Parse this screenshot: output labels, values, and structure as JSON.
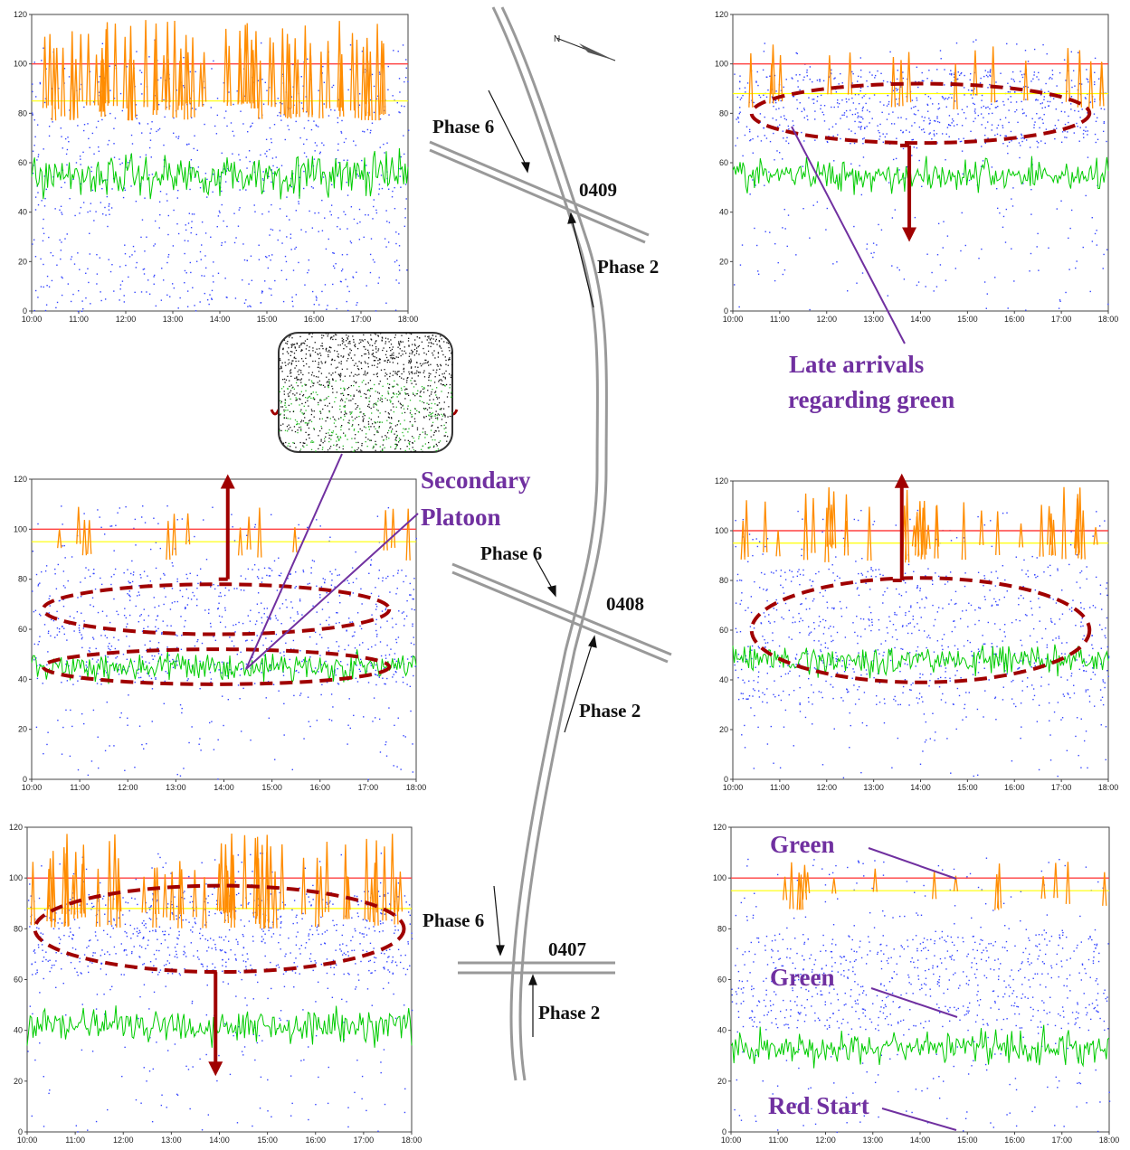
{
  "chart_data": [
    {
      "id": "0409-phase6",
      "type": "scatter",
      "x_ticks": [
        "10:00",
        "11:00",
        "12:00",
        "13:00",
        "14:00",
        "15:00",
        "16:00",
        "17:00",
        "18:00"
      ],
      "y_ticks": [
        0,
        20,
        40,
        60,
        80,
        100,
        120
      ],
      "ylim": [
        0,
        120
      ],
      "series": [
        {
          "kind": "red_line",
          "level": 100,
          "color": "#ff4040"
        },
        {
          "kind": "yellow_line",
          "level": 85,
          "color": "#ffff00"
        },
        {
          "kind": "orange_spikes",
          "base": 100,
          "peak": 118,
          "count": 70,
          "color": "#ff8c00"
        },
        {
          "kind": "green_band",
          "center": 55,
          "spread": 9,
          "color": "#00cc00"
        },
        {
          "kind": "blue_points",
          "dense_min": 0,
          "dense_max": 100,
          "color": "#3344ff"
        }
      ],
      "ellipses": [],
      "arrows": []
    },
    {
      "id": "0409-phase2",
      "type": "scatter",
      "x_ticks": [
        "10:00",
        "11:00",
        "12:00",
        "13:00",
        "14:00",
        "15:00",
        "16:00",
        "17:00",
        "18:00"
      ],
      "y_ticks": [
        0,
        20,
        40,
        60,
        80,
        100,
        120
      ],
      "ylim": [
        0,
        120
      ],
      "series": [
        {
          "kind": "red_line",
          "level": 100,
          "color": "#ff4040"
        },
        {
          "kind": "yellow_line",
          "level": 88,
          "color": "#ffff00"
        },
        {
          "kind": "orange_spikes",
          "base": 100,
          "peak": 108,
          "count": 18,
          "color": "#ff8c00"
        },
        {
          "kind": "green_band",
          "center": 55,
          "spread": 7,
          "color": "#00cc00"
        },
        {
          "kind": "blue_points",
          "dense_min": 68,
          "dense_max": 98,
          "color": "#3344ff"
        }
      ],
      "ellipses": [
        {
          "cx_frac": 0.5,
          "cy": 80,
          "rx_frac": 0.45,
          "ry": 12
        }
      ],
      "arrows": [
        {
          "direction": "down",
          "x_frac": 0.47,
          "from": 67,
          "to": 28
        }
      ]
    },
    {
      "id": "0408-phase6",
      "type": "scatter",
      "x_ticks": [
        "10:00",
        "11:00",
        "12:00",
        "13:00",
        "14:00",
        "15:00",
        "16:00",
        "17:00",
        "18:00"
      ],
      "y_ticks": [
        0,
        20,
        40,
        60,
        80,
        100,
        120
      ],
      "ylim": [
        0,
        120
      ],
      "series": [
        {
          "kind": "red_line",
          "level": 100,
          "color": "#ff4040"
        },
        {
          "kind": "yellow_line",
          "level": 95,
          "color": "#ffff00"
        },
        {
          "kind": "orange_spikes",
          "base": 100,
          "peak": 110,
          "count": 14,
          "color": "#ff8c00"
        },
        {
          "kind": "green_band",
          "center": 45,
          "spread": 6,
          "color": "#00cc00"
        },
        {
          "kind": "blue_points",
          "dense_min": 38,
          "dense_max": 85,
          "color": "#3344ff"
        }
      ],
      "ellipses": [
        {
          "cx_frac": 0.48,
          "cy": 68,
          "rx_frac": 0.45,
          "ry": 10
        },
        {
          "cx_frac": 0.48,
          "cy": 45,
          "rx_frac": 0.45,
          "ry": 7
        }
      ],
      "arrows": [
        {
          "direction": "up",
          "x_frac": 0.51,
          "from": 80,
          "to": 122
        }
      ]
    },
    {
      "id": "0408-phase2",
      "type": "scatter",
      "x_ticks": [
        "10:00",
        "11:00",
        "12:00",
        "13:00",
        "14:00",
        "15:00",
        "16:00",
        "17:00",
        "18:00"
      ],
      "y_ticks": [
        0,
        20,
        40,
        60,
        80,
        100,
        120
      ],
      "ylim": [
        0,
        120
      ],
      "series": [
        {
          "kind": "red_line",
          "level": 100,
          "color": "#ff4040"
        },
        {
          "kind": "yellow_line",
          "level": 95,
          "color": "#ffff00"
        },
        {
          "kind": "orange_spikes",
          "base": 100,
          "peak": 118,
          "count": 40,
          "color": "#ff8c00"
        },
        {
          "kind": "green_band",
          "center": 48,
          "spread": 6,
          "color": "#00cc00"
        },
        {
          "kind": "blue_points",
          "dense_min": 30,
          "dense_max": 85,
          "color": "#3344ff"
        }
      ],
      "ellipses": [
        {
          "cx_frac": 0.5,
          "cy": 60,
          "rx_frac": 0.45,
          "ry": 21
        }
      ],
      "arrows": [
        {
          "direction": "up",
          "x_frac": 0.45,
          "from": 80,
          "to": 123
        }
      ]
    },
    {
      "id": "0407-phase6",
      "type": "scatter",
      "x_ticks": [
        "10:00",
        "11:00",
        "12:00",
        "13:00",
        "14:00",
        "15:00",
        "16:00",
        "17:00",
        "18:00"
      ],
      "y_ticks": [
        0,
        20,
        40,
        60,
        80,
        100,
        120
      ],
      "ylim": [
        0,
        120
      ],
      "series": [
        {
          "kind": "red_line",
          "level": 100,
          "color": "#ff4040"
        },
        {
          "kind": "yellow_line",
          "level": 88,
          "color": "#ffff00"
        },
        {
          "kind": "orange_spikes",
          "base": 100,
          "peak": 118,
          "count": 60,
          "color": "#ff8c00"
        },
        {
          "kind": "green_band",
          "center": 42,
          "spread": 8,
          "color": "#00cc00"
        },
        {
          "kind": "blue_points",
          "dense_min": 62,
          "dense_max": 95,
          "color": "#3344ff"
        }
      ],
      "ellipses": [
        {
          "cx_frac": 0.5,
          "cy": 80,
          "rx_frac": 0.48,
          "ry": 17
        }
      ],
      "arrows": [
        {
          "direction": "down",
          "x_frac": 0.49,
          "from": 63,
          "to": 22
        }
      ]
    },
    {
      "id": "0407-phase2",
      "type": "scatter",
      "x_ticks": [
        "10:00",
        "11:00",
        "12:00",
        "13:00",
        "14:00",
        "15:00",
        "16:00",
        "17:00",
        "18:00"
      ],
      "y_ticks": [
        0,
        20,
        40,
        60,
        80,
        100,
        120
      ],
      "ylim": [
        0,
        120
      ],
      "series": [
        {
          "kind": "red_line",
          "level": 100,
          "color": "#ff4040"
        },
        {
          "kind": "yellow_line",
          "level": 95,
          "color": "#ffff00"
        },
        {
          "kind": "orange_spikes",
          "base": 100,
          "peak": 107,
          "count": 16,
          "color": "#ff8c00"
        },
        {
          "kind": "green_band",
          "center": 33,
          "spread": 7,
          "color": "#00cc00"
        },
        {
          "kind": "blue_points",
          "dense_min": 40,
          "dense_max": 78,
          "color": "#3344ff"
        }
      ],
      "ellipses": [],
      "arrows": []
    }
  ],
  "map": {
    "intersections": [
      "0409",
      "0408",
      "0407"
    ],
    "phase6_label": "Phase 6",
    "phase2_label": "Phase 2"
  },
  "annotations": {
    "late_arrivals_line1": "Late arrivals",
    "late_arrivals_line2": "regarding green",
    "secondary_line1": "Secondary",
    "secondary_line2": "Platoon",
    "green_top": "Green",
    "green_mid": "Green",
    "red_start": "Red Start"
  }
}
